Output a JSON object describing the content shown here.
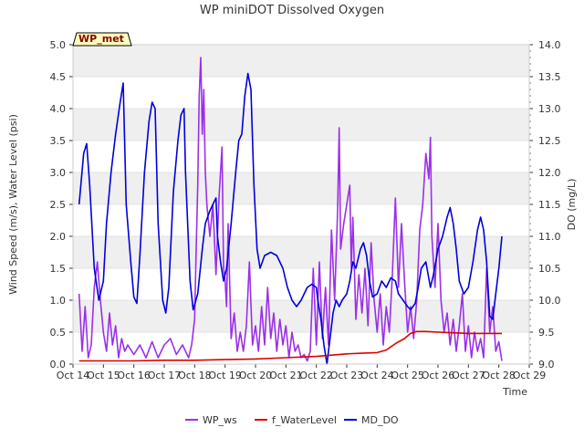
{
  "chart_data": {
    "type": "line",
    "title": "WP miniDOT Dissolved Oxygen",
    "xlabel": "Time",
    "ylabel_left": "Wind Speed (m/s), Water Level (psi)",
    "ylabel_right": "DO (mg/L)",
    "station_label": "WP_met",
    "x_tick_labels": [
      "Oct 14",
      "Oct 15",
      "Oct 16",
      "Oct 17",
      "Oct 18",
      "Oct 19",
      "Oct 20",
      "Oct 21",
      "Oct 22",
      "Oct 23",
      "Oct 24",
      "Oct 25",
      "Oct 26",
      "Oct 27",
      "Oct 28",
      "Oct 29"
    ],
    "xlim": [
      14,
      29
    ],
    "y_left_ticks": [
      "0.0",
      "0.5",
      "1.0",
      "1.5",
      "2.0",
      "2.5",
      "3.0",
      "3.5",
      "4.0",
      "4.5",
      "5.0"
    ],
    "ylim_left": [
      0,
      5
    ],
    "y_right_ticks": [
      "9.0",
      "9.5",
      "10.0",
      "10.5",
      "11.0",
      "11.5",
      "12.0",
      "12.5",
      "13.0",
      "13.5",
      "14.0"
    ],
    "ylim_right": [
      9,
      14
    ],
    "grid": "horizontal bands",
    "legend_position": "bottom-center",
    "series": [
      {
        "name": "WP_ws",
        "axis": "left",
        "color": "#9b30e8",
        "points": [
          [
            14.2,
            1.1
          ],
          [
            14.3,
            0.2
          ],
          [
            14.4,
            0.9
          ],
          [
            14.5,
            0.1
          ],
          [
            14.6,
            0.3
          ],
          [
            14.7,
            1.2
          ],
          [
            14.8,
            1.6
          ],
          [
            14.9,
            1.0
          ],
          [
            15.0,
            0.5
          ],
          [
            15.1,
            0.2
          ],
          [
            15.2,
            0.8
          ],
          [
            15.3,
            0.3
          ],
          [
            15.4,
            0.6
          ],
          [
            15.5,
            0.1
          ],
          [
            15.6,
            0.4
          ],
          [
            15.7,
            0.2
          ],
          [
            15.8,
            0.3
          ],
          [
            16.0,
            0.15
          ],
          [
            16.2,
            0.3
          ],
          [
            16.4,
            0.1
          ],
          [
            16.6,
            0.35
          ],
          [
            16.8,
            0.1
          ],
          [
            17.0,
            0.3
          ],
          [
            17.2,
            0.4
          ],
          [
            17.4,
            0.15
          ],
          [
            17.6,
            0.3
          ],
          [
            17.8,
            0.1
          ],
          [
            17.9,
            0.3
          ],
          [
            18.0,
            0.7
          ],
          [
            18.05,
            1.8
          ],
          [
            18.1,
            2.8
          ],
          [
            18.15,
            4.2
          ],
          [
            18.2,
            4.8
          ],
          [
            18.25,
            3.6
          ],
          [
            18.3,
            4.3
          ],
          [
            18.35,
            3.0
          ],
          [
            18.4,
            2.5
          ],
          [
            18.5,
            2.0
          ],
          [
            18.6,
            2.5
          ],
          [
            18.7,
            1.4
          ],
          [
            18.8,
            2.6
          ],
          [
            18.9,
            3.4
          ],
          [
            18.95,
            1.5
          ],
          [
            19.0,
            1.3
          ],
          [
            19.05,
            0.9
          ],
          [
            19.1,
            2.2
          ],
          [
            19.2,
            0.4
          ],
          [
            19.3,
            0.8
          ],
          [
            19.4,
            0.2
          ],
          [
            19.5,
            0.5
          ],
          [
            19.6,
            0.2
          ],
          [
            19.7,
            0.6
          ],
          [
            19.8,
            1.6
          ],
          [
            19.9,
            0.3
          ],
          [
            20.0,
            0.6
          ],
          [
            20.1,
            0.2
          ],
          [
            20.2,
            0.9
          ],
          [
            20.3,
            0.3
          ],
          [
            20.4,
            1.2
          ],
          [
            20.5,
            0.4
          ],
          [
            20.6,
            0.8
          ],
          [
            20.7,
            0.2
          ],
          [
            20.8,
            0.7
          ],
          [
            20.9,
            0.3
          ],
          [
            21.0,
            0.6
          ],
          [
            21.1,
            0.1
          ],
          [
            21.2,
            0.5
          ],
          [
            21.3,
            0.2
          ],
          [
            21.4,
            0.3
          ],
          [
            21.5,
            0.1
          ],
          [
            21.6,
            0.15
          ],
          [
            21.7,
            0.05
          ],
          [
            21.8,
            0.2
          ],
          [
            21.9,
            1.5
          ],
          [
            22.0,
            0.3
          ],
          [
            22.1,
            1.6
          ],
          [
            22.2,
            0.4
          ],
          [
            22.3,
            1.2
          ],
          [
            22.4,
            0.3
          ],
          [
            22.5,
            2.1
          ],
          [
            22.6,
            1.0
          ],
          [
            22.7,
            2.4
          ],
          [
            22.75,
            3.7
          ],
          [
            22.8,
            1.8
          ],
          [
            22.9,
            2.2
          ],
          [
            23.0,
            2.5
          ],
          [
            23.1,
            2.8
          ],
          [
            23.15,
            1.5
          ],
          [
            23.2,
            2.3
          ],
          [
            23.3,
            0.7
          ],
          [
            23.4,
            1.4
          ],
          [
            23.5,
            0.8
          ],
          [
            23.6,
            1.5
          ],
          [
            23.7,
            0.6
          ],
          [
            23.8,
            1.9
          ],
          [
            23.9,
            1.0
          ],
          [
            24.0,
            0.5
          ],
          [
            24.1,
            1.1
          ],
          [
            24.2,
            0.3
          ],
          [
            24.3,
            0.9
          ],
          [
            24.4,
            0.5
          ],
          [
            24.5,
            1.4
          ],
          [
            24.6,
            2.6
          ],
          [
            24.7,
            1.2
          ],
          [
            24.8,
            2.2
          ],
          [
            24.9,
            1.3
          ],
          [
            25.0,
            0.5
          ],
          [
            25.1,
            0.9
          ],
          [
            25.2,
            0.4
          ],
          [
            25.3,
            1.0
          ],
          [
            25.4,
            2.1
          ],
          [
            25.5,
            2.5
          ],
          [
            25.6,
            3.3
          ],
          [
            25.7,
            2.9
          ],
          [
            25.75,
            3.55
          ],
          [
            25.8,
            2.0
          ],
          [
            25.9,
            1.2
          ],
          [
            26.0,
            2.2
          ],
          [
            26.1,
            1.0
          ],
          [
            26.2,
            0.5
          ],
          [
            26.3,
            0.8
          ],
          [
            26.4,
            0.3
          ],
          [
            26.5,
            0.7
          ],
          [
            26.6,
            0.2
          ],
          [
            26.7,
            0.6
          ],
          [
            26.8,
            1.1
          ],
          [
            26.9,
            0.2
          ],
          [
            27.0,
            0.6
          ],
          [
            27.1,
            0.1
          ],
          [
            27.2,
            0.5
          ],
          [
            27.3,
            0.2
          ],
          [
            27.4,
            0.4
          ],
          [
            27.5,
            0.1
          ],
          [
            27.6,
            1.5
          ],
          [
            27.7,
            0.5
          ],
          [
            27.8,
            0.9
          ],
          [
            27.9,
            0.2
          ],
          [
            28.0,
            0.35
          ],
          [
            28.1,
            0.05
          ]
        ]
      },
      {
        "name": "f_WaterLevel",
        "axis": "left",
        "color": "#dd0000",
        "points": [
          [
            14.2,
            0.05
          ],
          [
            15.0,
            0.05
          ],
          [
            16.0,
            0.05
          ],
          [
            17.0,
            0.06
          ],
          [
            18.0,
            0.06
          ],
          [
            19.0,
            0.07
          ],
          [
            20.0,
            0.08
          ],
          [
            21.0,
            0.1
          ],
          [
            22.0,
            0.12
          ],
          [
            23.0,
            0.16
          ],
          [
            23.5,
            0.17
          ],
          [
            24.0,
            0.18
          ],
          [
            24.3,
            0.22
          ],
          [
            24.6,
            0.32
          ],
          [
            24.9,
            0.4
          ],
          [
            25.1,
            0.48
          ],
          [
            25.3,
            0.51
          ],
          [
            25.6,
            0.51
          ],
          [
            26.0,
            0.5
          ],
          [
            26.5,
            0.49
          ],
          [
            27.0,
            0.48
          ],
          [
            27.5,
            0.48
          ],
          [
            28.0,
            0.48
          ],
          [
            28.1,
            0.48
          ]
        ]
      },
      {
        "name": "MD_DO",
        "axis": "right",
        "color": "#0000dd",
        "points": [
          [
            14.2,
            11.5
          ],
          [
            14.35,
            12.3
          ],
          [
            14.45,
            12.45
          ],
          [
            14.55,
            11.8
          ],
          [
            14.7,
            10.5
          ],
          [
            14.85,
            10.0
          ],
          [
            15.0,
            10.3
          ],
          [
            15.1,
            11.2
          ],
          [
            15.25,
            12.0
          ],
          [
            15.4,
            12.6
          ],
          [
            15.55,
            13.1
          ],
          [
            15.65,
            13.4
          ],
          [
            15.75,
            11.5
          ],
          [
            15.9,
            10.6
          ],
          [
            16.0,
            10.05
          ],
          [
            16.1,
            9.95
          ],
          [
            16.2,
            10.7
          ],
          [
            16.35,
            12.0
          ],
          [
            16.5,
            12.8
          ],
          [
            16.6,
            13.1
          ],
          [
            16.7,
            13.0
          ],
          [
            16.8,
            11.2
          ],
          [
            16.95,
            10.0
          ],
          [
            17.05,
            9.8
          ],
          [
            17.15,
            10.2
          ],
          [
            17.3,
            11.7
          ],
          [
            17.45,
            12.5
          ],
          [
            17.55,
            12.9
          ],
          [
            17.65,
            13.0
          ],
          [
            17.7,
            12.0
          ],
          [
            17.85,
            10.3
          ],
          [
            17.95,
            9.85
          ],
          [
            18.1,
            10.1
          ],
          [
            18.25,
            10.8
          ],
          [
            18.35,
            11.2
          ],
          [
            18.5,
            11.4
          ],
          [
            18.6,
            11.5
          ],
          [
            18.7,
            11.6
          ],
          [
            18.75,
            11.0
          ],
          [
            18.85,
            10.6
          ],
          [
            18.95,
            10.3
          ],
          [
            19.05,
            10.5
          ],
          [
            19.2,
            11.2
          ],
          [
            19.35,
            12.0
          ],
          [
            19.45,
            12.5
          ],
          [
            19.55,
            12.6
          ],
          [
            19.65,
            13.2
          ],
          [
            19.75,
            13.55
          ],
          [
            19.85,
            13.3
          ],
          [
            19.95,
            11.8
          ],
          [
            20.05,
            10.8
          ],
          [
            20.15,
            10.5
          ],
          [
            20.3,
            10.7
          ],
          [
            20.5,
            10.75
          ],
          [
            20.7,
            10.7
          ],
          [
            20.9,
            10.5
          ],
          [
            21.05,
            10.2
          ],
          [
            21.2,
            10.0
          ],
          [
            21.35,
            9.9
          ],
          [
            21.5,
            10.0
          ],
          [
            21.7,
            10.2
          ],
          [
            21.85,
            10.25
          ],
          [
            22.0,
            10.2
          ],
          [
            22.05,
            10.0
          ],
          [
            22.15,
            9.7
          ],
          [
            22.25,
            9.3
          ],
          [
            22.35,
            9.0
          ],
          [
            22.45,
            9.4
          ],
          [
            22.55,
            9.8
          ],
          [
            22.65,
            10.0
          ],
          [
            22.75,
            9.9
          ],
          [
            22.85,
            10.0
          ],
          [
            23.0,
            10.1
          ],
          [
            23.1,
            10.3
          ],
          [
            23.2,
            10.6
          ],
          [
            23.3,
            10.5
          ],
          [
            23.45,
            10.8
          ],
          [
            23.55,
            10.9
          ],
          [
            23.65,
            10.7
          ],
          [
            23.75,
            10.3
          ],
          [
            23.85,
            10.05
          ],
          [
            24.0,
            10.1
          ],
          [
            24.15,
            10.3
          ],
          [
            24.3,
            10.2
          ],
          [
            24.45,
            10.35
          ],
          [
            24.6,
            10.3
          ],
          [
            24.7,
            10.1
          ],
          [
            24.85,
            10.0
          ],
          [
            25.0,
            9.9
          ],
          [
            25.1,
            9.85
          ],
          [
            25.25,
            9.95
          ],
          [
            25.35,
            10.2
          ],
          [
            25.45,
            10.5
          ],
          [
            25.6,
            10.6
          ],
          [
            25.75,
            10.2
          ],
          [
            25.85,
            10.4
          ],
          [
            26.0,
            10.8
          ],
          [
            26.15,
            11.0
          ],
          [
            26.3,
            11.3
          ],
          [
            26.4,
            11.45
          ],
          [
            26.5,
            11.2
          ],
          [
            26.6,
            10.8
          ],
          [
            26.7,
            10.3
          ],
          [
            26.85,
            10.1
          ],
          [
            27.0,
            10.2
          ],
          [
            27.15,
            10.6
          ],
          [
            27.3,
            11.1
          ],
          [
            27.4,
            11.3
          ],
          [
            27.5,
            11.1
          ],
          [
            27.6,
            10.6
          ],
          [
            27.7,
            9.75
          ],
          [
            27.8,
            9.7
          ],
          [
            27.9,
            10.1
          ],
          [
            28.0,
            10.5
          ],
          [
            28.1,
            11.0
          ]
        ]
      }
    ]
  }
}
